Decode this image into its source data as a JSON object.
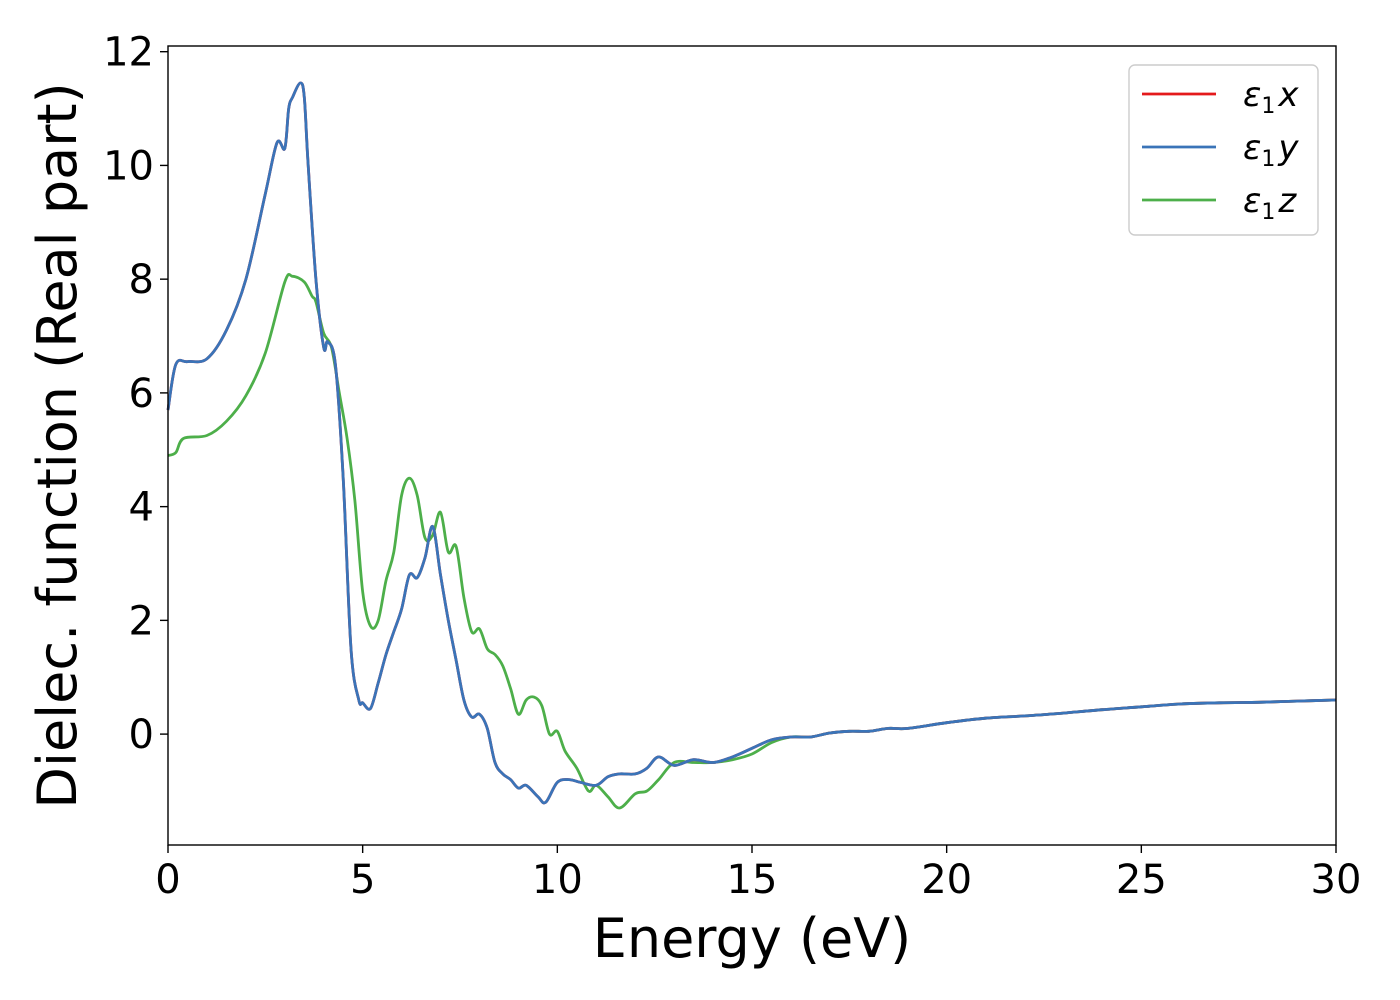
{
  "chart_data": {
    "type": "line",
    "xlabel": "Energy (eV)",
    "ylabel": "Dielec. function (Real part)",
    "xlim": [
      0,
      30
    ],
    "ylim": [
      -1.95,
      12.1
    ],
    "xticks": [
      0,
      5,
      10,
      15,
      20,
      25,
      30
    ],
    "yticks": [
      0,
      2,
      4,
      6,
      8,
      10,
      12
    ],
    "grid": false,
    "legend_position": "top-right",
    "series": [
      {
        "name": "ε1x",
        "legend_main": "ε",
        "legend_sub": "1",
        "legend_suffix": "x",
        "color": "#e41a1c",
        "x": [
          0,
          0.2,
          0.5,
          1.0,
          1.5,
          2.0,
          2.5,
          2.8,
          3.0,
          3.1,
          3.2,
          3.4,
          3.5,
          3.6,
          3.8,
          4.0,
          4.1,
          4.3,
          4.5,
          4.7,
          4.9,
          5.0,
          5.2,
          5.4,
          5.6,
          5.8,
          6.0,
          6.2,
          6.4,
          6.6,
          6.8,
          7.0,
          7.2,
          7.4,
          7.6,
          7.8,
          8.0,
          8.2,
          8.4,
          8.6,
          8.8,
          9.0,
          9.2,
          9.5,
          9.7,
          10.0,
          10.3,
          10.6,
          11.0,
          11.3,
          11.6,
          12.0,
          12.3,
          12.6,
          13.0,
          13.5,
          14.0,
          14.5,
          15.0,
          15.5,
          16.0,
          16.5,
          17.0,
          17.5,
          18.0,
          18.5,
          19.0,
          20.0,
          21.0,
          22.0,
          23.0,
          24.0,
          25.0,
          26.0,
          27.0,
          28.0,
          29.0,
          30.0
        ],
        "values": [
          5.7,
          6.5,
          6.55,
          6.6,
          7.1,
          8.0,
          9.5,
          10.4,
          10.3,
          11.0,
          11.2,
          11.45,
          11.2,
          10.0,
          8.0,
          6.8,
          6.9,
          6.5,
          4.5,
          1.5,
          0.6,
          0.55,
          0.45,
          0.9,
          1.4,
          1.8,
          2.2,
          2.8,
          2.75,
          3.1,
          3.65,
          2.8,
          2.0,
          1.3,
          0.6,
          0.3,
          0.35,
          0.1,
          -0.5,
          -0.7,
          -0.8,
          -0.95,
          -0.9,
          -1.1,
          -1.2,
          -0.85,
          -0.8,
          -0.85,
          -0.9,
          -0.75,
          -0.7,
          -0.7,
          -0.6,
          -0.4,
          -0.55,
          -0.45,
          -0.5,
          -0.4,
          -0.25,
          -0.1,
          -0.05,
          -0.05,
          0.02,
          0.05,
          0.05,
          0.1,
          0.1,
          0.2,
          0.28,
          0.32,
          0.37,
          0.43,
          0.48,
          0.53,
          0.55,
          0.56,
          0.58,
          0.6
        ]
      },
      {
        "name": "ε1y",
        "legend_main": "ε",
        "legend_sub": "1",
        "legend_suffix": "y",
        "color": "#3a74b8",
        "x": [
          0,
          0.2,
          0.5,
          1.0,
          1.5,
          2.0,
          2.5,
          2.8,
          3.0,
          3.1,
          3.2,
          3.4,
          3.5,
          3.6,
          3.8,
          4.0,
          4.1,
          4.3,
          4.5,
          4.7,
          4.9,
          5.0,
          5.2,
          5.4,
          5.6,
          5.8,
          6.0,
          6.2,
          6.4,
          6.6,
          6.8,
          7.0,
          7.2,
          7.4,
          7.6,
          7.8,
          8.0,
          8.2,
          8.4,
          8.6,
          8.8,
          9.0,
          9.2,
          9.5,
          9.7,
          10.0,
          10.3,
          10.6,
          11.0,
          11.3,
          11.6,
          12.0,
          12.3,
          12.6,
          13.0,
          13.5,
          14.0,
          14.5,
          15.0,
          15.5,
          16.0,
          16.5,
          17.0,
          17.5,
          18.0,
          18.5,
          19.0,
          20.0,
          21.0,
          22.0,
          23.0,
          24.0,
          25.0,
          26.0,
          27.0,
          28.0,
          29.0,
          30.0
        ],
        "values": [
          5.7,
          6.5,
          6.55,
          6.6,
          7.1,
          8.0,
          9.5,
          10.4,
          10.3,
          11.0,
          11.2,
          11.45,
          11.2,
          10.0,
          8.0,
          6.8,
          6.9,
          6.5,
          4.5,
          1.5,
          0.6,
          0.55,
          0.45,
          0.9,
          1.4,
          1.8,
          2.2,
          2.8,
          2.75,
          3.1,
          3.65,
          2.8,
          2.0,
          1.3,
          0.6,
          0.3,
          0.35,
          0.1,
          -0.5,
          -0.7,
          -0.8,
          -0.95,
          -0.9,
          -1.1,
          -1.2,
          -0.85,
          -0.8,
          -0.85,
          -0.9,
          -0.75,
          -0.7,
          -0.7,
          -0.6,
          -0.4,
          -0.55,
          -0.45,
          -0.5,
          -0.4,
          -0.25,
          -0.1,
          -0.05,
          -0.05,
          0.02,
          0.05,
          0.05,
          0.1,
          0.1,
          0.2,
          0.28,
          0.32,
          0.37,
          0.43,
          0.48,
          0.53,
          0.55,
          0.56,
          0.58,
          0.6
        ]
      },
      {
        "name": "ε1z",
        "legend_main": "ε",
        "legend_sub": "1",
        "legend_suffix": "z",
        "color": "#4daf4a",
        "x": [
          0,
          0.2,
          0.4,
          1.0,
          1.5,
          2.0,
          2.5,
          3.0,
          3.2,
          3.5,
          3.7,
          3.8,
          4.0,
          4.2,
          4.4,
          4.6,
          4.8,
          5.0,
          5.2,
          5.4,
          5.6,
          5.8,
          6.0,
          6.2,
          6.4,
          6.6,
          6.8,
          7.0,
          7.2,
          7.4,
          7.6,
          7.8,
          8.0,
          8.2,
          8.4,
          8.6,
          8.8,
          9.0,
          9.2,
          9.4,
          9.6,
          9.8,
          10.0,
          10.2,
          10.5,
          10.8,
          11.0,
          11.3,
          11.6,
          12.0,
          12.3,
          12.6,
          13.0,
          13.5,
          14.0,
          14.5,
          15.0,
          15.5,
          16.0,
          16.5,
          17.0,
          17.5,
          18.0,
          18.5,
          19.0,
          20.0,
          21.0,
          22.0,
          23.0,
          24.0,
          25.0,
          26.0,
          27.0,
          28.0,
          29.0,
          30.0
        ],
        "values": [
          4.9,
          4.95,
          5.2,
          5.25,
          5.5,
          5.95,
          6.7,
          7.95,
          8.05,
          7.95,
          7.7,
          7.6,
          7.05,
          6.8,
          6.0,
          5.2,
          4.1,
          2.5,
          1.9,
          2.0,
          2.7,
          3.2,
          4.2,
          4.5,
          4.2,
          3.45,
          3.5,
          3.9,
          3.2,
          3.3,
          2.4,
          1.8,
          1.85,
          1.5,
          1.4,
          1.2,
          0.8,
          0.35,
          0.6,
          0.65,
          0.5,
          0.0,
          0.05,
          -0.3,
          -0.6,
          -1.0,
          -0.9,
          -1.1,
          -1.3,
          -1.05,
          -1.0,
          -0.8,
          -0.5,
          -0.5,
          -0.5,
          -0.45,
          -0.35,
          -0.15,
          -0.05,
          -0.05,
          0.02,
          0.05,
          0.05,
          0.1,
          0.1,
          0.2,
          0.28,
          0.32,
          0.37,
          0.43,
          0.48,
          0.53,
          0.55,
          0.56,
          0.58,
          0.6
        ]
      }
    ]
  }
}
